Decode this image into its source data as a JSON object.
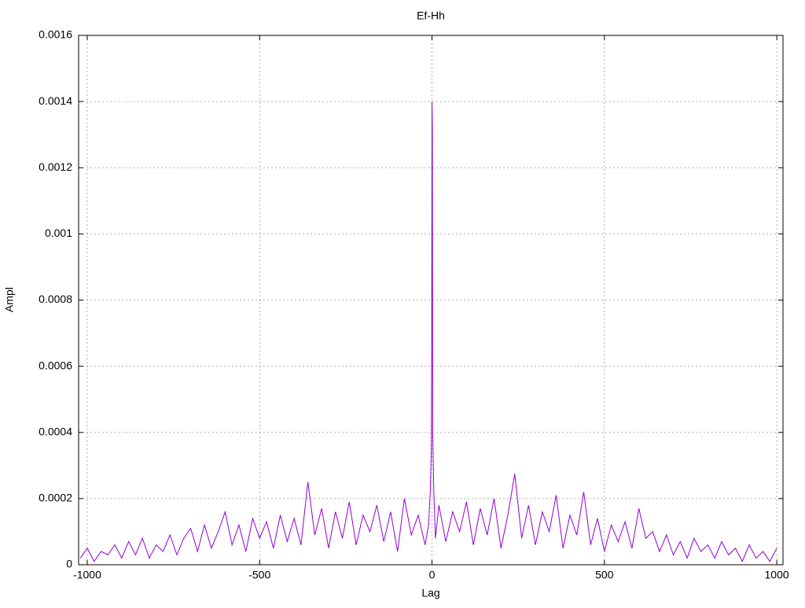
{
  "chart_data": {
    "type": "line",
    "title": "Ef-Hh",
    "x_label": "Lag",
    "y_label": "Ampl",
    "x": [
      -1020,
      -1000,
      -980,
      -960,
      -940,
      -920,
      -900,
      -880,
      -860,
      -840,
      -820,
      -800,
      -780,
      -760,
      -740,
      -720,
      -700,
      -680,
      -660,
      -640,
      -620,
      -600,
      -580,
      -560,
      -540,
      -520,
      -500,
      -480,
      -460,
      -440,
      -420,
      -400,
      -380,
      -360,
      -340,
      -320,
      -300,
      -280,
      -260,
      -240,
      -220,
      -200,
      -180,
      -160,
      -140,
      -120,
      -100,
      -80,
      -60,
      -40,
      -20,
      -10,
      -5,
      -2,
      -1,
      0,
      1,
      2,
      5,
      10,
      20,
      40,
      60,
      80,
      100,
      120,
      140,
      160,
      180,
      200,
      220,
      240,
      260,
      280,
      300,
      320,
      340,
      360,
      380,
      400,
      420,
      440,
      460,
      480,
      500,
      520,
      540,
      560,
      580,
      600,
      620,
      640,
      660,
      680,
      700,
      720,
      740,
      760,
      780,
      800,
      820,
      840,
      860,
      880,
      900,
      920,
      940,
      960,
      980,
      1000
    ],
    "series": [
      {
        "name": "Ef-Hh",
        "color": "#9400d3",
        "values": [
          2e-05,
          5e-05,
          1e-05,
          4e-05,
          3e-05,
          6e-05,
          2e-05,
          7e-05,
          3e-05,
          8e-05,
          2e-05,
          6e-05,
          4e-05,
          9e-05,
          3e-05,
          8e-05,
          0.00011,
          4e-05,
          0.00012,
          5e-05,
          0.0001,
          0.00016,
          6e-05,
          0.00012,
          4e-05,
          0.00014,
          8e-05,
          0.00013,
          5e-05,
          0.00015,
          7e-05,
          0.00014,
          6e-05,
          0.00025,
          9e-05,
          0.00017,
          5e-05,
          0.00016,
          8e-05,
          0.00019,
          6e-05,
          0.00015,
          0.0001,
          0.00018,
          7e-05,
          0.00016,
          4e-05,
          0.0002,
          9e-05,
          0.00015,
          6e-05,
          0.00012,
          0.00022,
          0.00035,
          0.0006,
          0.0014,
          0.00132,
          0.0004,
          0.00023,
          8e-05,
          0.00018,
          7e-05,
          0.00016,
          0.0001,
          0.00019,
          6e-05,
          0.00017,
          9e-05,
          0.0002,
          5e-05,
          0.00015,
          0.000275,
          8e-05,
          0.00018,
          6e-05,
          0.00016,
          0.0001,
          0.00021,
          5e-05,
          0.00015,
          9e-05,
          0.00022,
          6e-05,
          0.00014,
          4e-05,
          0.00012,
          7e-05,
          0.00013,
          5e-05,
          0.00017,
          8e-05,
          0.0001,
          4e-05,
          9e-05,
          3e-05,
          7e-05,
          2e-05,
          8e-05,
          4e-05,
          6e-05,
          2e-05,
          7e-05,
          3e-05,
          5e-05,
          1e-05,
          6e-05,
          2e-05,
          4e-05,
          1e-05,
          5e-05
        ]
      }
    ],
    "xlim": [
      -1025,
      1018
    ],
    "ylim": [
      0,
      0.0016
    ],
    "xticks": [
      -1000,
      -500,
      0,
      500,
      1000
    ],
    "yticks": [
      0,
      0.0002,
      0.0004,
      0.0006,
      0.0008,
      0.001,
      0.0012,
      0.0014,
      0.0016
    ],
    "grid": true
  }
}
